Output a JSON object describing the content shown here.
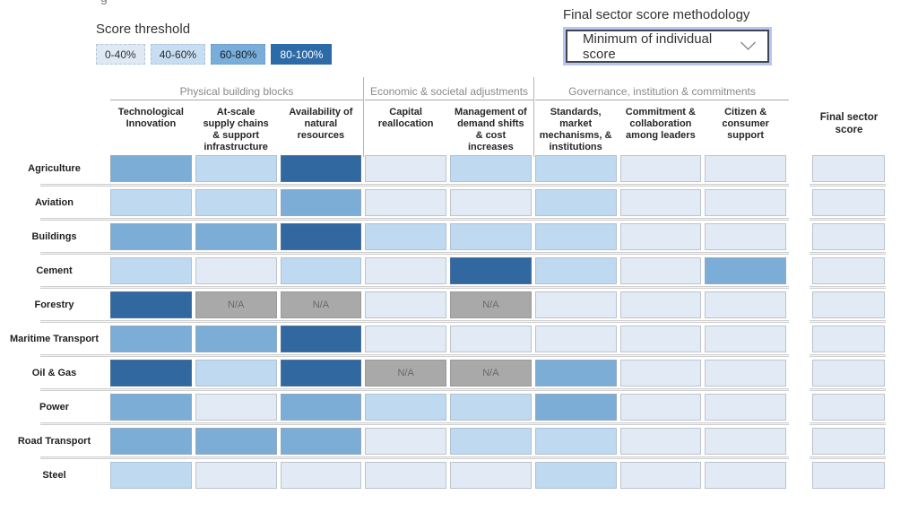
{
  "artifact_text": "g",
  "legend": {
    "title": "Score threshold",
    "items": [
      {
        "label": "0-40%",
        "color": "#dfe9f4",
        "text_color": "#333333",
        "border_color": "#b4c5d6"
      },
      {
        "label": "40-60%",
        "color": "#c7def2",
        "text_color": "#2b2b2b",
        "border_color": "#a9c4dc"
      },
      {
        "label": "60-80%",
        "color": "#7aaeda",
        "text_color": "#14202c",
        "border_color": "#6d9cc6"
      },
      {
        "label": "80-100%",
        "color": "#2d6aa8",
        "text_color": "#ffffff",
        "border_color": "#2d6aa8"
      }
    ]
  },
  "methodology": {
    "label": "Final sector score methodology",
    "selected": "Minimum of individual score",
    "icon": "chevron-down-icon"
  },
  "table": {
    "groups": [
      {
        "label": "Physical building blocks"
      },
      {
        "label": "Economic & societal adjustments"
      },
      {
        "label": "Governance, institution & commitments"
      }
    ],
    "columns": [
      "Technological Innovation",
      "At-scale supply chains & support infrastructure",
      "Availability of natural resources",
      "Capital reallocation",
      "Management of demand shifts & cost increases",
      "Standards, market mechanisms, & institutions",
      "Commitment & collaboration among leaders",
      "Citizen & consumer support"
    ],
    "final_column": "Final sector score",
    "rows": [
      {
        "sector": "Agriculture",
        "scores": [
          "60-80",
          "40-60",
          "80-100",
          "0-40",
          "40-60",
          "40-60",
          "0-40",
          "0-40"
        ],
        "final": "0-40"
      },
      {
        "sector": "Aviation",
        "scores": [
          "40-60",
          "40-60",
          "60-80",
          "0-40",
          "0-40",
          "40-60",
          "0-40",
          "0-40"
        ],
        "final": "0-40"
      },
      {
        "sector": "Buildings",
        "scores": [
          "60-80",
          "60-80",
          "80-100",
          "40-60",
          "40-60",
          "40-60",
          "0-40",
          "0-40"
        ],
        "final": "0-40"
      },
      {
        "sector": "Cement",
        "scores": [
          "40-60",
          "0-40",
          "40-60",
          "0-40",
          "80-100",
          "40-60",
          "0-40",
          "60-80"
        ],
        "final": "0-40"
      },
      {
        "sector": "Forestry",
        "scores": [
          "80-100",
          "na",
          "na",
          "0-40",
          "na",
          "0-40",
          "0-40",
          "0-40"
        ],
        "final": "0-40"
      },
      {
        "sector": "Maritime Transport",
        "scores": [
          "60-80",
          "60-80",
          "80-100",
          "0-40",
          "0-40",
          "0-40",
          "0-40",
          "0-40"
        ],
        "final": "0-40"
      },
      {
        "sector": "Oil & Gas",
        "scores": [
          "80-100",
          "40-60",
          "80-100",
          "na",
          "na",
          "60-80",
          "0-40",
          "0-40"
        ],
        "final": "0-40"
      },
      {
        "sector": "Power",
        "scores": [
          "60-80",
          "0-40",
          "60-80",
          "40-60",
          "40-60",
          "60-80",
          "0-40",
          "0-40"
        ],
        "final": "0-40"
      },
      {
        "sector": "Road Transport",
        "scores": [
          "60-80",
          "60-80",
          "60-80",
          "0-40",
          "40-60",
          "40-60",
          "0-40",
          "0-40"
        ],
        "final": "0-40"
      },
      {
        "sector": "Steel",
        "scores": [
          "40-60",
          "0-40",
          "0-40",
          "0-40",
          "0-40",
          "40-60",
          "0-40",
          "0-40"
        ],
        "final": "0-40"
      }
    ]
  },
  "palette": {
    "0-40": {
      "bg": "#e2ebf5",
      "border": "#bcc3cb"
    },
    "40-60": {
      "bg": "#bed9f0",
      "border": "#b0c1d2"
    },
    "60-80": {
      "bg": "#7badd6",
      "border": "#94a9bf"
    },
    "80-100": {
      "bg": "#30689f",
      "border": "#4f729b"
    },
    "na": {
      "bg": "#a9a9a9",
      "border": "#9a9a9a",
      "text": "#696969",
      "label": "N/A"
    }
  },
  "chart_data": {
    "type": "heatmap",
    "title": "",
    "legend_title": "Score threshold",
    "legend_bands": [
      "0-40%",
      "40-60%",
      "60-80%",
      "80-100%"
    ],
    "na_label": "N/A",
    "control": {
      "label": "Final sector score methodology",
      "selected": "Minimum of individual score"
    },
    "column_groups": [
      {
        "label": "Physical building blocks",
        "columns": [
          0,
          1,
          2
        ]
      },
      {
        "label": "Economic & societal adjustments",
        "columns": [
          3,
          4
        ]
      },
      {
        "label": "Governance, institution & commitments",
        "columns": [
          5,
          6,
          7
        ]
      }
    ],
    "columns": [
      "Technological Innovation",
      "At-scale supply chains & support infrastructure",
      "Availability of natural resources",
      "Capital reallocation",
      "Management of demand shifts & cost increases",
      "Standards, market mechanisms, & institutions",
      "Commitment & collaboration among leaders",
      "Citizen & consumer support",
      "Final sector score"
    ],
    "rows": [
      "Agriculture",
      "Aviation",
      "Buildings",
      "Cement",
      "Forestry",
      "Maritime Transport",
      "Oil & Gas",
      "Power",
      "Road Transport",
      "Steel"
    ],
    "values": [
      [
        "60-80",
        "40-60",
        "80-100",
        "0-40",
        "40-60",
        "40-60",
        "0-40",
        "0-40",
        "0-40"
      ],
      [
        "40-60",
        "40-60",
        "60-80",
        "0-40",
        "0-40",
        "40-60",
        "0-40",
        "0-40",
        "0-40"
      ],
      [
        "60-80",
        "60-80",
        "80-100",
        "40-60",
        "40-60",
        "40-60",
        "0-40",
        "0-40",
        "0-40"
      ],
      [
        "40-60",
        "0-40",
        "40-60",
        "0-40",
        "80-100",
        "40-60",
        "0-40",
        "60-80",
        "0-40"
      ],
      [
        "80-100",
        "N/A",
        "N/A",
        "0-40",
        "N/A",
        "0-40",
        "0-40",
        "0-40",
        "0-40"
      ],
      [
        "60-80",
        "60-80",
        "80-100",
        "0-40",
        "0-40",
        "0-40",
        "0-40",
        "0-40",
        "0-40"
      ],
      [
        "80-100",
        "40-60",
        "80-100",
        "N/A",
        "N/A",
        "60-80",
        "0-40",
        "0-40",
        "0-40"
      ],
      [
        "60-80",
        "0-40",
        "60-80",
        "40-60",
        "40-60",
        "60-80",
        "0-40",
        "0-40",
        "0-40"
      ],
      [
        "60-80",
        "60-80",
        "60-80",
        "0-40",
        "40-60",
        "40-60",
        "0-40",
        "0-40",
        "0-40"
      ],
      [
        "40-60",
        "0-40",
        "0-40",
        "0-40",
        "0-40",
        "40-60",
        "0-40",
        "0-40",
        "0-40"
      ]
    ]
  }
}
